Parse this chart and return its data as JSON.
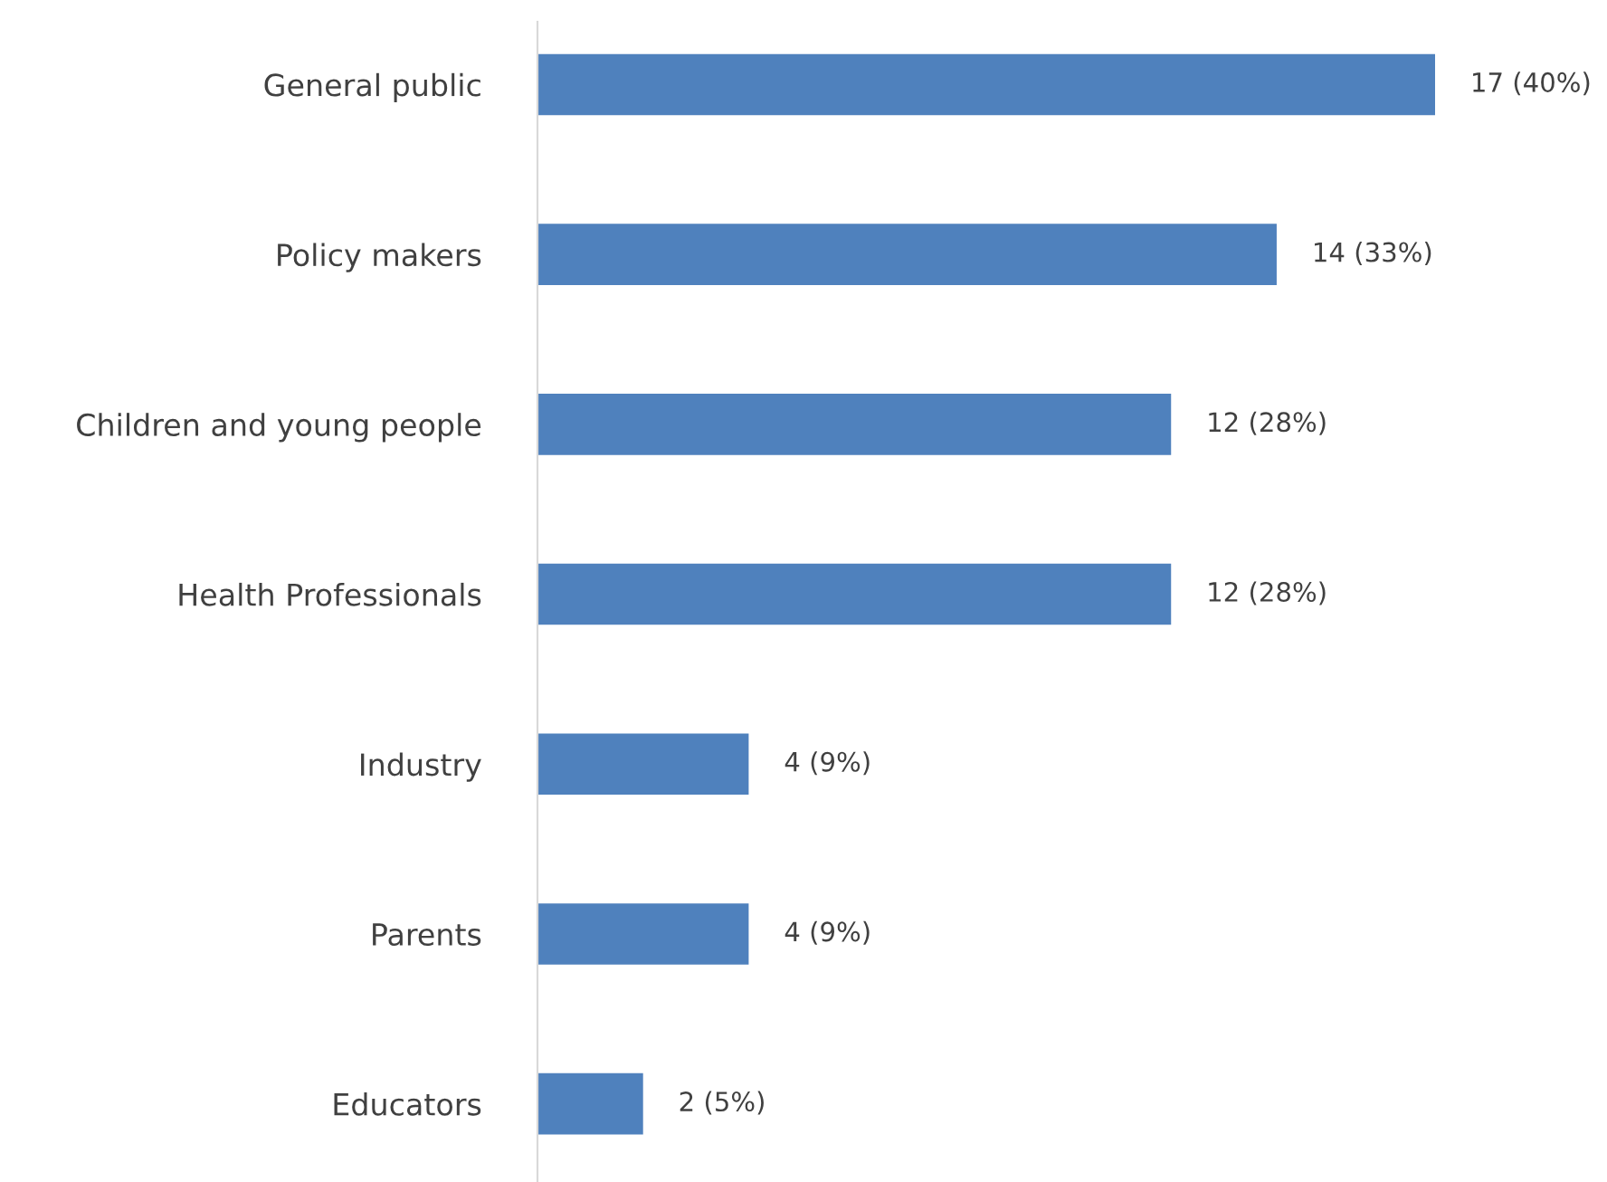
{
  "chart_data": {
    "type": "bar",
    "orientation": "horizontal",
    "categories": [
      "General public",
      "Policy makers",
      "Children and young people",
      "Health Professionals",
      "Industry",
      "Parents",
      "Educators"
    ],
    "values": [
      17,
      14,
      12,
      12,
      4,
      4,
      2
    ],
    "value_labels": [
      "17 (40%)",
      "14 (33%)",
      "12 (28%)",
      "12 (28%)",
      "4 (9%)",
      "4 (9%)",
      "2 (5%)"
    ],
    "color": "#4f81bd",
    "grid": false,
    "tick_labels": "y"
  }
}
